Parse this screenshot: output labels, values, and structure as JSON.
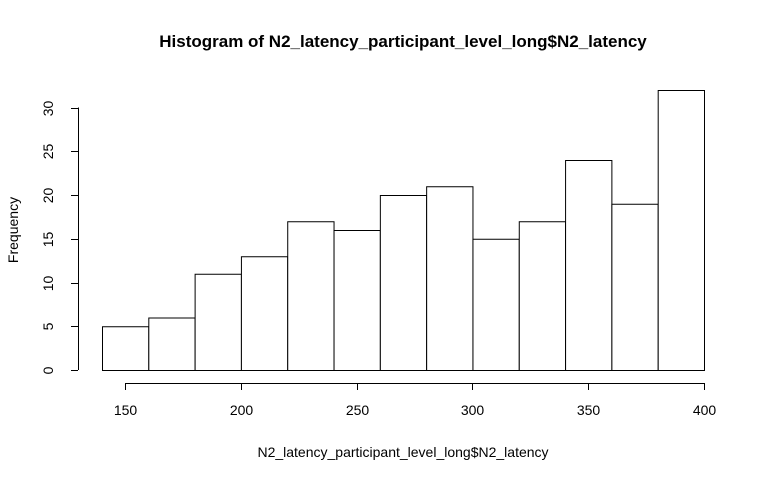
{
  "chart_data": {
    "type": "bar",
    "title": "Histogram of N2_latency_participant_level_long$N2_latency",
    "xlabel": "N2_latency_participant_level_long$N2_latency",
    "ylabel": "Frequency",
    "bins": [
      {
        "from": 140,
        "to": 160,
        "count": 5
      },
      {
        "from": 160,
        "to": 180,
        "count": 6
      },
      {
        "from": 180,
        "to": 200,
        "count": 11
      },
      {
        "from": 200,
        "to": 220,
        "count": 13
      },
      {
        "from": 220,
        "to": 240,
        "count": 17
      },
      {
        "from": 240,
        "to": 260,
        "count": 16
      },
      {
        "from": 260,
        "to": 280,
        "count": 20
      },
      {
        "from": 280,
        "to": 300,
        "count": 21
      },
      {
        "from": 300,
        "to": 320,
        "count": 15
      },
      {
        "from": 320,
        "to": 340,
        "count": 17
      },
      {
        "from": 340,
        "to": 360,
        "count": 24
      },
      {
        "from": 360,
        "to": 380,
        "count": 19
      },
      {
        "from": 380,
        "to": 400,
        "count": 32
      }
    ],
    "x_ticks": [
      "150",
      "200",
      "250",
      "300",
      "350",
      "400"
    ],
    "y_ticks": [
      "0",
      "5",
      "10",
      "15",
      "20",
      "25",
      "30"
    ],
    "xlim": [
      140,
      400
    ],
    "ylim": [
      0,
      32
    ],
    "grid": false
  }
}
